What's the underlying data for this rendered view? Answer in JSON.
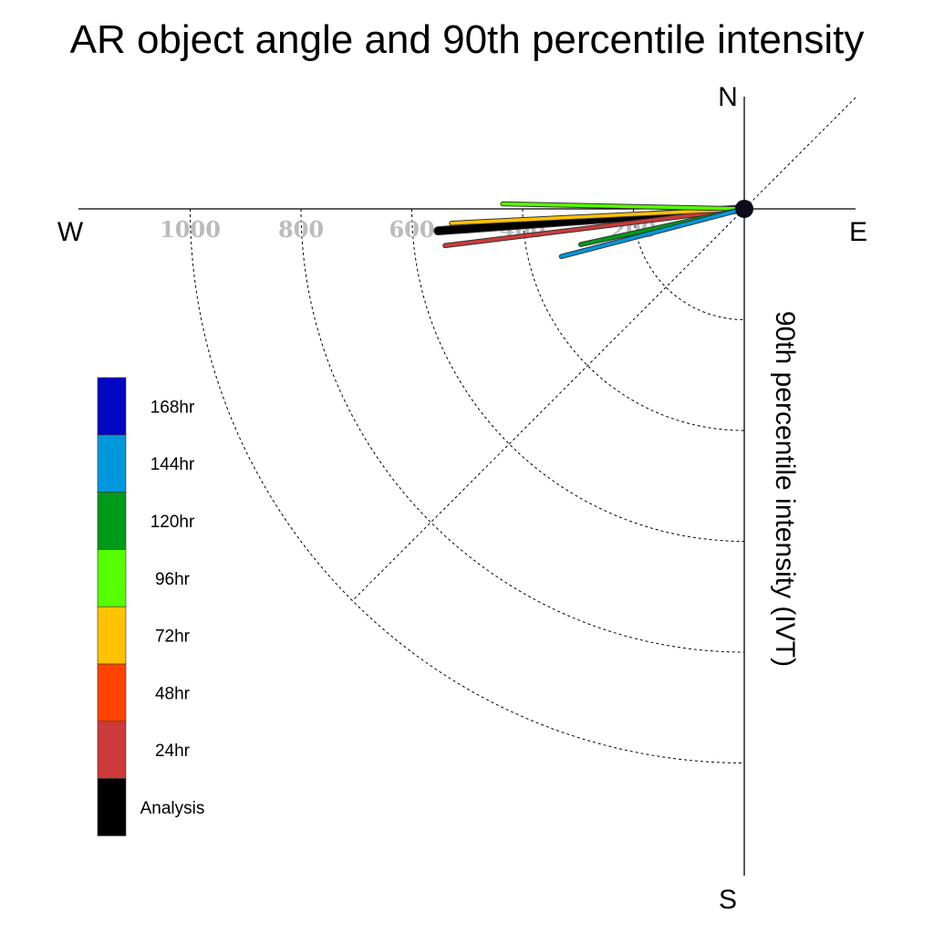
{
  "chart_data": {
    "type": "polar-vector",
    "title": "AR object angle and 90th percentile intensity",
    "ylabel": "90th percentile intensity (IVT)",
    "compass": {
      "north": "N",
      "south": "S",
      "east": "E",
      "west": "W"
    },
    "radial_ticks": [
      {
        "value": 200,
        "label": "200"
      },
      {
        "value": 400,
        "label": "400"
      },
      {
        "value": 600,
        "label": "600"
      },
      {
        "value": 800,
        "label": "800"
      },
      {
        "value": 1000,
        "label": "1000"
      }
    ],
    "radial_max": 1200,
    "series": [
      {
        "name": "Analysis",
        "color": "#000000",
        "angle_deg_below_west": 4.1,
        "intensity": 554
      },
      {
        "name": "24hr",
        "color": "#cc3a3a",
        "angle_deg_below_west": 7.0,
        "intensity": 544
      },
      {
        "name": "72hr",
        "color": "#ffc200",
        "angle_deg_below_west": 2.8,
        "intensity": 529
      },
      {
        "name": "96hr",
        "color": "#55ff00",
        "angle_deg_below_west": -1.2,
        "intensity": 436
      },
      {
        "name": "120hr",
        "color": "#009a1a",
        "angle_deg_below_west": 12.3,
        "intensity": 302
      },
      {
        "name": "144hr",
        "color": "#0098dd",
        "angle_deg_below_west": 14.6,
        "intensity": 341
      }
    ],
    "legend": [
      {
        "label": "168hr",
        "color": "#0008c4"
      },
      {
        "label": "144hr",
        "color": "#0098dd"
      },
      {
        "label": "120hr",
        "color": "#009a1a"
      },
      {
        "label": "96hr",
        "color": "#55ff00"
      },
      {
        "label": "72hr",
        "color": "#ffc200"
      },
      {
        "label": "48hr",
        "color": "#ff4400"
      },
      {
        "label": "24hr",
        "color": "#cc3a3a"
      },
      {
        "label": "Analysis",
        "color": "#000000"
      }
    ],
    "legend_placement": "left",
    "grid": true
  }
}
